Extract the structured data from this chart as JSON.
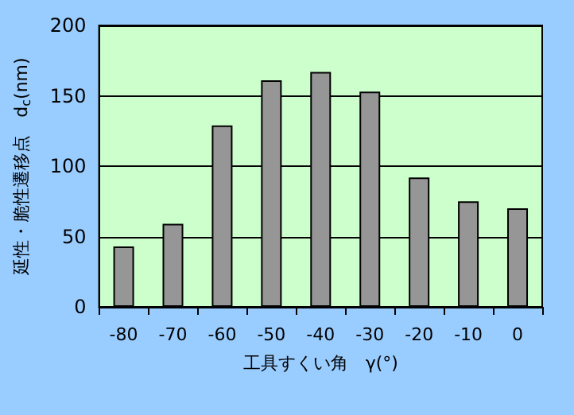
{
  "chart_data": {
    "type": "bar",
    "xlabel": "工具すくい角　γ(°)",
    "ylabel": "延性・脆性遷移点　d$_{c}$(nm)",
    "categories": [
      "-80",
      "-70",
      "-60",
      "-50",
      "-40",
      "-30",
      "-20",
      "-10",
      "0"
    ],
    "values": [
      43,
      59,
      129,
      161,
      167,
      153,
      92,
      75,
      70
    ],
    "color": "#969696",
    "ylim": [
      0,
      200
    ],
    "yticks": [
      0,
      50,
      100,
      150,
      200
    ],
    "grid": "y"
  }
}
